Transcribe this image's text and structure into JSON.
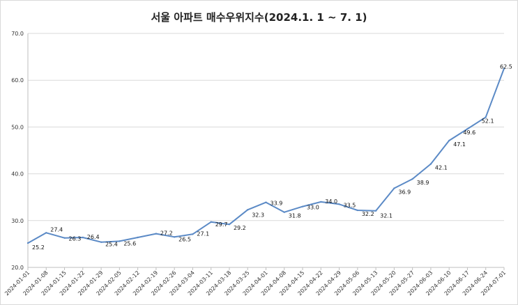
{
  "chart_data": {
    "type": "line",
    "title": "서울 아파트 매수우위지수(2024.1. 1 ~ 7. 1)",
    "xlabel": "",
    "ylabel": "",
    "ylim": [
      20,
      70
    ],
    "yticks": [
      "20.0",
      "30.0",
      "40.0",
      "50.0",
      "60.0",
      "70.0"
    ],
    "grid": "horizontal",
    "legend": "none",
    "line_color": "#5b8ac6",
    "categories": [
      "2024-01-01",
      "2024-01-08",
      "2024-01-15",
      "2024-01-22",
      "2024-01-29",
      "2024-02-05",
      "2024-02-12",
      "2024-02-19",
      "2024-02-26",
      "2024-03-04",
      "2024-03-11",
      "2024-03-18",
      "2024-03-25",
      "2024-04-01",
      "2024-04-08",
      "2024-04-15",
      "2024-04-22",
      "2024-04-29",
      "2024-05-06",
      "2024-05-13",
      "2024-05-20",
      "2024-05-27",
      "2024-06-03",
      "2024-06-10",
      "2024-06-17",
      "2024-06-24",
      "2024-07-01"
    ],
    "values": [
      25.2,
      27.4,
      26.3,
      26.4,
      25.4,
      25.6,
      26.4,
      27.2,
      26.5,
      27.1,
      29.7,
      29.2,
      32.3,
      33.9,
      31.8,
      33.0,
      34.0,
      33.5,
      32.2,
      32.1,
      36.9,
      38.9,
      42.1,
      47.1,
      49.6,
      52.1,
      62.5
    ],
    "value_labels": [
      "25.2",
      "27.4",
      "26.3",
      "26.4",
      "25.4",
      "25.6",
      "",
      "27.2",
      "26.5",
      "27.1",
      "29.7",
      "29.2",
      "32.3",
      "33.9",
      "31.8",
      "33.0",
      "34.0",
      "33.5",
      "32.2",
      "32.1",
      "36.9",
      "38.9",
      "42.1",
      "47.1",
      "49.6",
      "52.1",
      "62.5"
    ]
  }
}
